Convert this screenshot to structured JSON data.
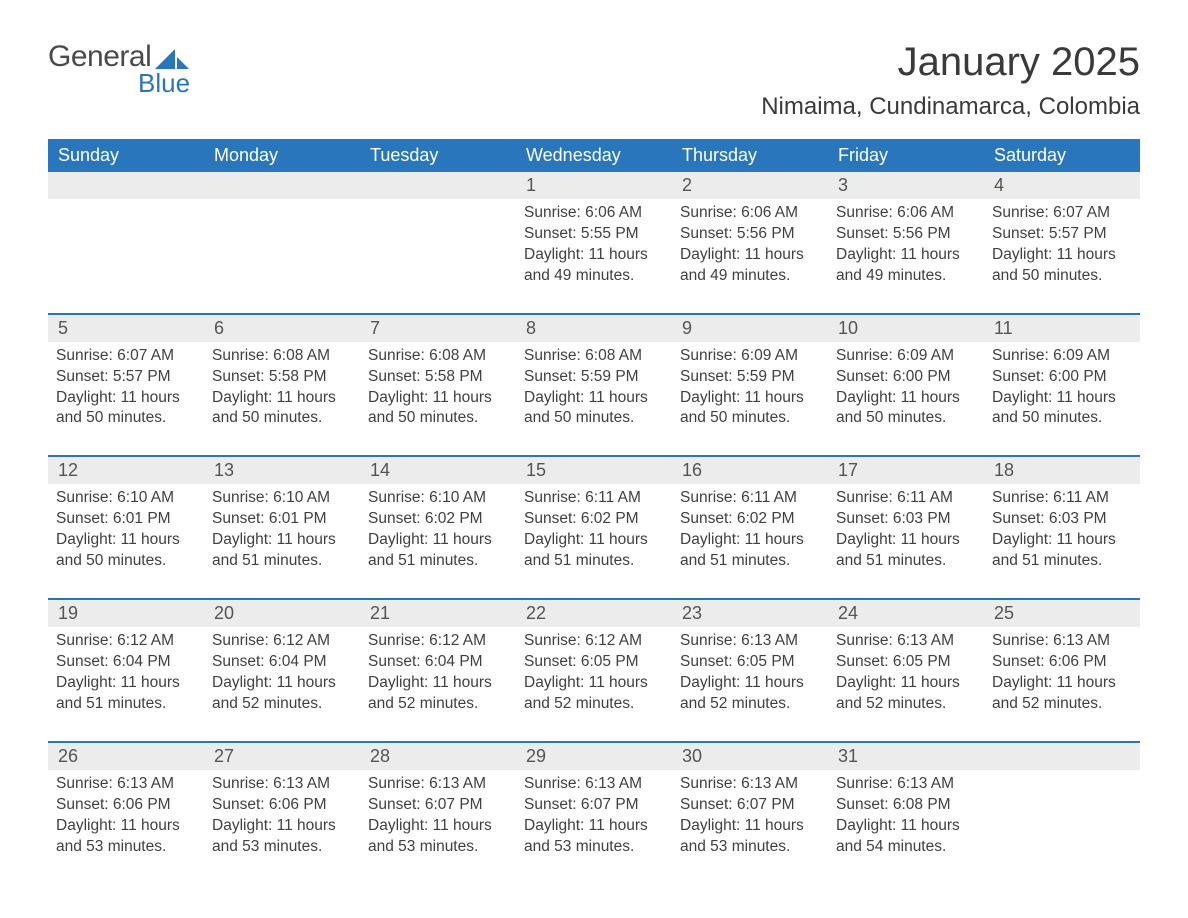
{
  "logo": {
    "word1": "General",
    "word2": "Blue",
    "color1": "#4a4a4a",
    "color2": "#2a76bd"
  },
  "title": "January 2025",
  "location": "Nimaima, Cundinamarca, Colombia",
  "colors": {
    "header_bg": "#2a76bd",
    "header_text": "#ffffff",
    "daynum_bg": "#ececec",
    "text": "#404040",
    "rule": "#2a76bd",
    "page_bg": "#ffffff"
  },
  "typography": {
    "title_fontsize": 40,
    "location_fontsize": 24,
    "dayheader_fontsize": 18,
    "daynum_fontsize": 18,
    "cell_fontsize": 15.5
  },
  "day_names": [
    "Sunday",
    "Monday",
    "Tuesday",
    "Wednesday",
    "Thursday",
    "Friday",
    "Saturday"
  ],
  "weeks": [
    [
      null,
      null,
      null,
      {
        "n": "1",
        "sunrise": "6:06 AM",
        "sunset": "5:55 PM",
        "daylight": "11 hours and 49 minutes."
      },
      {
        "n": "2",
        "sunrise": "6:06 AM",
        "sunset": "5:56 PM",
        "daylight": "11 hours and 49 minutes."
      },
      {
        "n": "3",
        "sunrise": "6:06 AM",
        "sunset": "5:56 PM",
        "daylight": "11 hours and 49 minutes."
      },
      {
        "n": "4",
        "sunrise": "6:07 AM",
        "sunset": "5:57 PM",
        "daylight": "11 hours and 50 minutes."
      }
    ],
    [
      {
        "n": "5",
        "sunrise": "6:07 AM",
        "sunset": "5:57 PM",
        "daylight": "11 hours and 50 minutes."
      },
      {
        "n": "6",
        "sunrise": "6:08 AM",
        "sunset": "5:58 PM",
        "daylight": "11 hours and 50 minutes."
      },
      {
        "n": "7",
        "sunrise": "6:08 AM",
        "sunset": "5:58 PM",
        "daylight": "11 hours and 50 minutes."
      },
      {
        "n": "8",
        "sunrise": "6:08 AM",
        "sunset": "5:59 PM",
        "daylight": "11 hours and 50 minutes."
      },
      {
        "n": "9",
        "sunrise": "6:09 AM",
        "sunset": "5:59 PM",
        "daylight": "11 hours and 50 minutes."
      },
      {
        "n": "10",
        "sunrise": "6:09 AM",
        "sunset": "6:00 PM",
        "daylight": "11 hours and 50 minutes."
      },
      {
        "n": "11",
        "sunrise": "6:09 AM",
        "sunset": "6:00 PM",
        "daylight": "11 hours and 50 minutes."
      }
    ],
    [
      {
        "n": "12",
        "sunrise": "6:10 AM",
        "sunset": "6:01 PM",
        "daylight": "11 hours and 50 minutes."
      },
      {
        "n": "13",
        "sunrise": "6:10 AM",
        "sunset": "6:01 PM",
        "daylight": "11 hours and 51 minutes."
      },
      {
        "n": "14",
        "sunrise": "6:10 AM",
        "sunset": "6:02 PM",
        "daylight": "11 hours and 51 minutes."
      },
      {
        "n": "15",
        "sunrise": "6:11 AM",
        "sunset": "6:02 PM",
        "daylight": "11 hours and 51 minutes."
      },
      {
        "n": "16",
        "sunrise": "6:11 AM",
        "sunset": "6:02 PM",
        "daylight": "11 hours and 51 minutes."
      },
      {
        "n": "17",
        "sunrise": "6:11 AM",
        "sunset": "6:03 PM",
        "daylight": "11 hours and 51 minutes."
      },
      {
        "n": "18",
        "sunrise": "6:11 AM",
        "sunset": "6:03 PM",
        "daylight": "11 hours and 51 minutes."
      }
    ],
    [
      {
        "n": "19",
        "sunrise": "6:12 AM",
        "sunset": "6:04 PM",
        "daylight": "11 hours and 51 minutes."
      },
      {
        "n": "20",
        "sunrise": "6:12 AM",
        "sunset": "6:04 PM",
        "daylight": "11 hours and 52 minutes."
      },
      {
        "n": "21",
        "sunrise": "6:12 AM",
        "sunset": "6:04 PM",
        "daylight": "11 hours and 52 minutes."
      },
      {
        "n": "22",
        "sunrise": "6:12 AM",
        "sunset": "6:05 PM",
        "daylight": "11 hours and 52 minutes."
      },
      {
        "n": "23",
        "sunrise": "6:13 AM",
        "sunset": "6:05 PM",
        "daylight": "11 hours and 52 minutes."
      },
      {
        "n": "24",
        "sunrise": "6:13 AM",
        "sunset": "6:05 PM",
        "daylight": "11 hours and 52 minutes."
      },
      {
        "n": "25",
        "sunrise": "6:13 AM",
        "sunset": "6:06 PM",
        "daylight": "11 hours and 52 minutes."
      }
    ],
    [
      {
        "n": "26",
        "sunrise": "6:13 AM",
        "sunset": "6:06 PM",
        "daylight": "11 hours and 53 minutes."
      },
      {
        "n": "27",
        "sunrise": "6:13 AM",
        "sunset": "6:06 PM",
        "daylight": "11 hours and 53 minutes."
      },
      {
        "n": "28",
        "sunrise": "6:13 AM",
        "sunset": "6:07 PM",
        "daylight": "11 hours and 53 minutes."
      },
      {
        "n": "29",
        "sunrise": "6:13 AM",
        "sunset": "6:07 PM",
        "daylight": "11 hours and 53 minutes."
      },
      {
        "n": "30",
        "sunrise": "6:13 AM",
        "sunset": "6:07 PM",
        "daylight": "11 hours and 53 minutes."
      },
      {
        "n": "31",
        "sunrise": "6:13 AM",
        "sunset": "6:08 PM",
        "daylight": "11 hours and 54 minutes."
      },
      null
    ]
  ],
  "labels": {
    "sunrise": "Sunrise: ",
    "sunset": "Sunset: ",
    "daylight": "Daylight: "
  }
}
